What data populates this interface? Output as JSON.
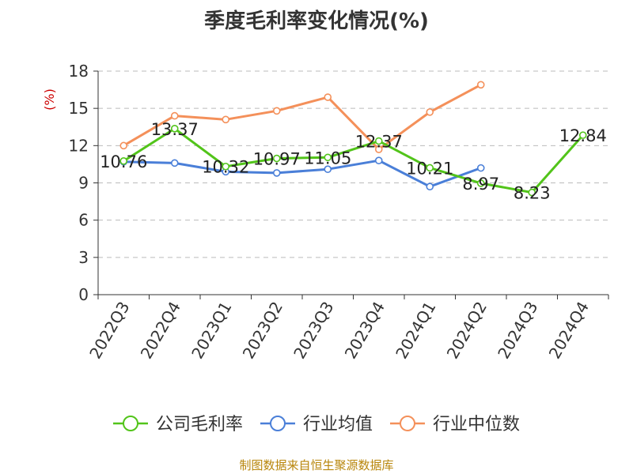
{
  "title": "季度毛利率变化情况(%)",
  "source": "制图数据来自恒生聚源数据库",
  "chart_data": {
    "type": "line",
    "title": "季度毛利率变化情况(%)",
    "ylabel": "(%)",
    "xlabel": "",
    "ylim": [
      0,
      18
    ],
    "yticks": [
      0,
      3,
      6,
      9,
      12,
      15,
      18
    ],
    "grid": "horizontal-dashed",
    "legend_position": "bottom",
    "categories": [
      "2022Q3",
      "2022Q4",
      "2023Q1",
      "2023Q2",
      "2023Q3",
      "2023Q4",
      "2024Q1",
      "2024Q2",
      "2024Q3",
      "2024Q4"
    ],
    "series": [
      {
        "name": "公司毛利率",
        "color": "#52c41a",
        "show_labels": true,
        "values": [
          10.76,
          13.37,
          10.32,
          10.97,
          11.05,
          12.37,
          10.21,
          8.97,
          8.23,
          12.84
        ]
      },
      {
        "name": "行业均值",
        "color": "#4a7fd8",
        "show_labels": false,
        "values": [
          10.7,
          10.6,
          9.9,
          9.8,
          10.1,
          10.8,
          8.7,
          10.2,
          null,
          null
        ]
      },
      {
        "name": "行业中位数",
        "color": "#f4905a",
        "show_labels": false,
        "values": [
          12.0,
          14.4,
          14.1,
          14.8,
          15.9,
          11.7,
          14.7,
          16.9,
          null,
          null
        ]
      }
    ]
  }
}
